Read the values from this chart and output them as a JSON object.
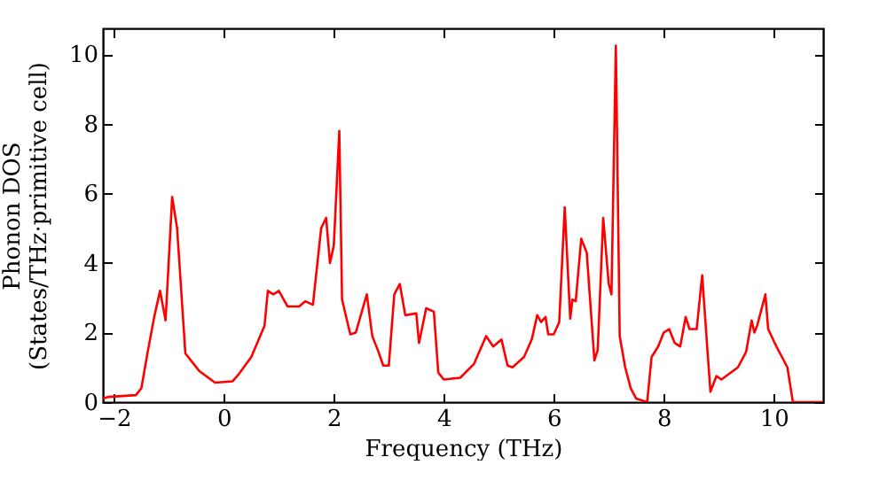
{
  "chart_data": {
    "type": "line",
    "xlabel": "Frequency (THz)",
    "ylabel": "Phonon DOS\n(States/THz·primitive cell)",
    "x": [
      -2.2,
      -2.1,
      -1.6,
      -1.5,
      -1.39,
      -1.26,
      -1.16,
      -1.06,
      -0.94,
      -0.85,
      -0.7,
      -0.45,
      -0.16,
      0.16,
      0.27,
      0.5,
      0.74,
      0.8,
      0.9,
      1.0,
      1.16,
      1.37,
      1.48,
      1.62,
      1.77,
      1.86,
      1.93,
      2.0,
      2.1,
      2.15,
      2.3,
      2.4,
      2.6,
      2.7,
      2.8,
      2.9,
      3.0,
      3.1,
      3.2,
      3.3,
      3.5,
      3.55,
      3.68,
      3.82,
      3.9,
      4.0,
      4.3,
      4.55,
      4.77,
      4.9,
      5.05,
      5.16,
      5.25,
      5.46,
      5.6,
      5.7,
      5.77,
      5.85,
      5.9,
      6.0,
      6.1,
      6.2,
      6.3,
      6.34,
      6.4,
      6.5,
      6.6,
      6.74,
      6.8,
      6.9,
      7.0,
      7.05,
      7.13,
      7.2,
      7.3,
      7.4,
      7.5,
      7.7,
      7.78,
      7.9,
      8.0,
      8.1,
      8.2,
      8.3,
      8.4,
      8.47,
      8.6,
      8.7,
      8.8,
      8.85,
      8.96,
      9.05,
      9.35,
      9.5,
      9.6,
      9.65,
      9.7,
      9.85,
      9.9,
      10.05,
      10.25,
      10.35,
      10.9
    ],
    "series": [
      {
        "color": "#ff0000",
        "values": [
          0.1,
          0.15,
          0.2,
          0.4,
          1.4,
          2.5,
          3.2,
          2.35,
          5.9,
          5.0,
          1.4,
          0.9,
          0.56,
          0.6,
          0.8,
          1.3,
          2.2,
          3.2,
          3.1,
          3.2,
          2.75,
          2.75,
          2.9,
          2.8,
          5.0,
          5.3,
          4.0,
          4.5,
          7.8,
          2.95,
          1.95,
          2.0,
          3.1,
          1.9,
          1.5,
          1.05,
          1.05,
          3.1,
          3.4,
          2.5,
          2.55,
          1.7,
          2.7,
          2.6,
          0.85,
          0.65,
          0.7,
          1.1,
          1.9,
          1.6,
          1.8,
          1.05,
          1.0,
          1.3,
          1.8,
          2.5,
          2.3,
          2.45,
          1.95,
          1.95,
          2.3,
          5.6,
          2.4,
          2.95,
          2.9,
          4.7,
          4.3,
          1.2,
          1.5,
          5.3,
          3.4,
          3.1,
          10.25,
          1.9,
          1.0,
          0.4,
          0.1,
          0.0,
          1.3,
          1.6,
          2.0,
          2.1,
          1.7,
          1.6,
          2.45,
          2.1,
          2.1,
          3.65,
          1.4,
          0.3,
          0.75,
          0.65,
          1.0,
          1.45,
          2.35,
          2.0,
          2.2,
          3.1,
          2.1,
          1.6,
          1.0,
          0.0,
          0.0
        ]
      }
    ],
    "xlim": [
      -2.2,
      10.9
    ],
    "ylim": [
      0,
      10.75
    ],
    "xticks": [
      -2,
      0,
      2,
      4,
      6,
      8,
      10
    ],
    "yticks": [
      0,
      2,
      4,
      6,
      8,
      10
    ],
    "grid": false,
    "marker": "none",
    "line_style": "solid"
  }
}
